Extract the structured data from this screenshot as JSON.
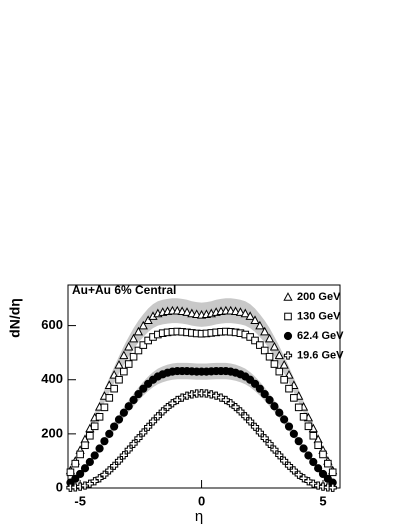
{
  "chart_data": {
    "type": "scatter",
    "title": "Au+Au 6% Central",
    "x_label": "η",
    "y_label": "dN/dη",
    "x": [
      -5.4,
      -5.2,
      -5.0,
      -4.8,
      -4.6,
      -4.4,
      -4.2,
      -4.0,
      -3.8,
      -3.6,
      -3.4,
      -3.2,
      -3.0,
      -2.8,
      -2.6,
      -2.4,
      -2.2,
      -2.0,
      -1.8,
      -1.6,
      -1.4,
      -1.2,
      -1.0,
      -0.8,
      -0.6,
      -0.4,
      -0.2,
      0,
      0.2,
      0.4,
      0.6,
      0.8,
      1.0,
      1.2,
      1.4,
      1.6,
      1.8,
      2.0,
      2.2,
      2.4,
      2.6,
      2.8,
      3.0,
      3.2,
      3.4,
      3.6,
      3.8,
      4.0,
      4.2,
      4.4,
      4.6,
      4.8,
      5.0,
      5.2,
      5.4
    ],
    "series": [
      {
        "name": "200 GeV",
        "marker": "triangle",
        "color": "#000000",
        "band": 0.07,
        "values": [
          65,
          100,
          140,
          180,
          220,
          260,
          300,
          340,
          380,
          418,
          455,
          490,
          522,
          552,
          578,
          600,
          620,
          635,
          645,
          650,
          653,
          655,
          655,
          653,
          650,
          645,
          642,
          640,
          642,
          645,
          650,
          653,
          655,
          655,
          653,
          650,
          645,
          635,
          620,
          600,
          578,
          552,
          522,
          490,
          455,
          418,
          380,
          340,
          300,
          260,
          220,
          180,
          140,
          100,
          65
        ]
      },
      {
        "name": "130 GeV",
        "marker": "square",
        "color": "#000000",
        "values": [
          58,
          90,
          124,
          158,
          193,
          228,
          263,
          298,
          333,
          367,
          400,
          430,
          458,
          485,
          508,
          528,
          545,
          558,
          567,
          572,
          575,
          577,
          578,
          577,
          575,
          573,
          571,
          570,
          571,
          573,
          575,
          577,
          578,
          577,
          575,
          572,
          567,
          558,
          545,
          528,
          508,
          485,
          458,
          430,
          400,
          367,
          333,
          298,
          263,
          228,
          193,
          158,
          124,
          90,
          58
        ]
      },
      {
        "name": "62.4 GeV",
        "marker": "circle",
        "color": "#000000",
        "band": 0.07,
        "values": [
          20,
          34,
          52,
          73,
          96,
          120,
          146,
          173,
          200,
          227,
          253,
          278,
          302,
          325,
          347,
          367,
          385,
          400,
          412,
          420,
          426,
          430,
          432,
          432,
          432,
          431,
          430,
          430,
          430,
          431,
          432,
          432,
          432,
          430,
          426,
          420,
          412,
          400,
          385,
          367,
          347,
          325,
          302,
          278,
          253,
          227,
          200,
          173,
          146,
          120,
          96,
          73,
          52,
          34,
          20
        ]
      },
      {
        "name": "19.6 GeV",
        "marker": "cross",
        "color": "#000000",
        "values": [
          1,
          2,
          5,
          9,
          16,
          25,
          36,
          49,
          65,
          82,
          101,
          121,
          142,
          163,
          184,
          205,
          226,
          246,
          265,
          283,
          299,
          313,
          325,
          334,
          341,
          346,
          349,
          350,
          349,
          346,
          341,
          334,
          325,
          313,
          299,
          283,
          265,
          246,
          226,
          205,
          184,
          163,
          142,
          121,
          101,
          82,
          65,
          49,
          36,
          25,
          16,
          9,
          5,
          2,
          1
        ]
      }
    ],
    "band_color": "#c8c8c8",
    "xlim": [
      -5.5,
      5.7
    ],
    "ylim": [
      0,
      750
    ],
    "xticks": [
      -5,
      0,
      5
    ],
    "yticks": [
      0,
      200,
      400,
      600
    ]
  }
}
